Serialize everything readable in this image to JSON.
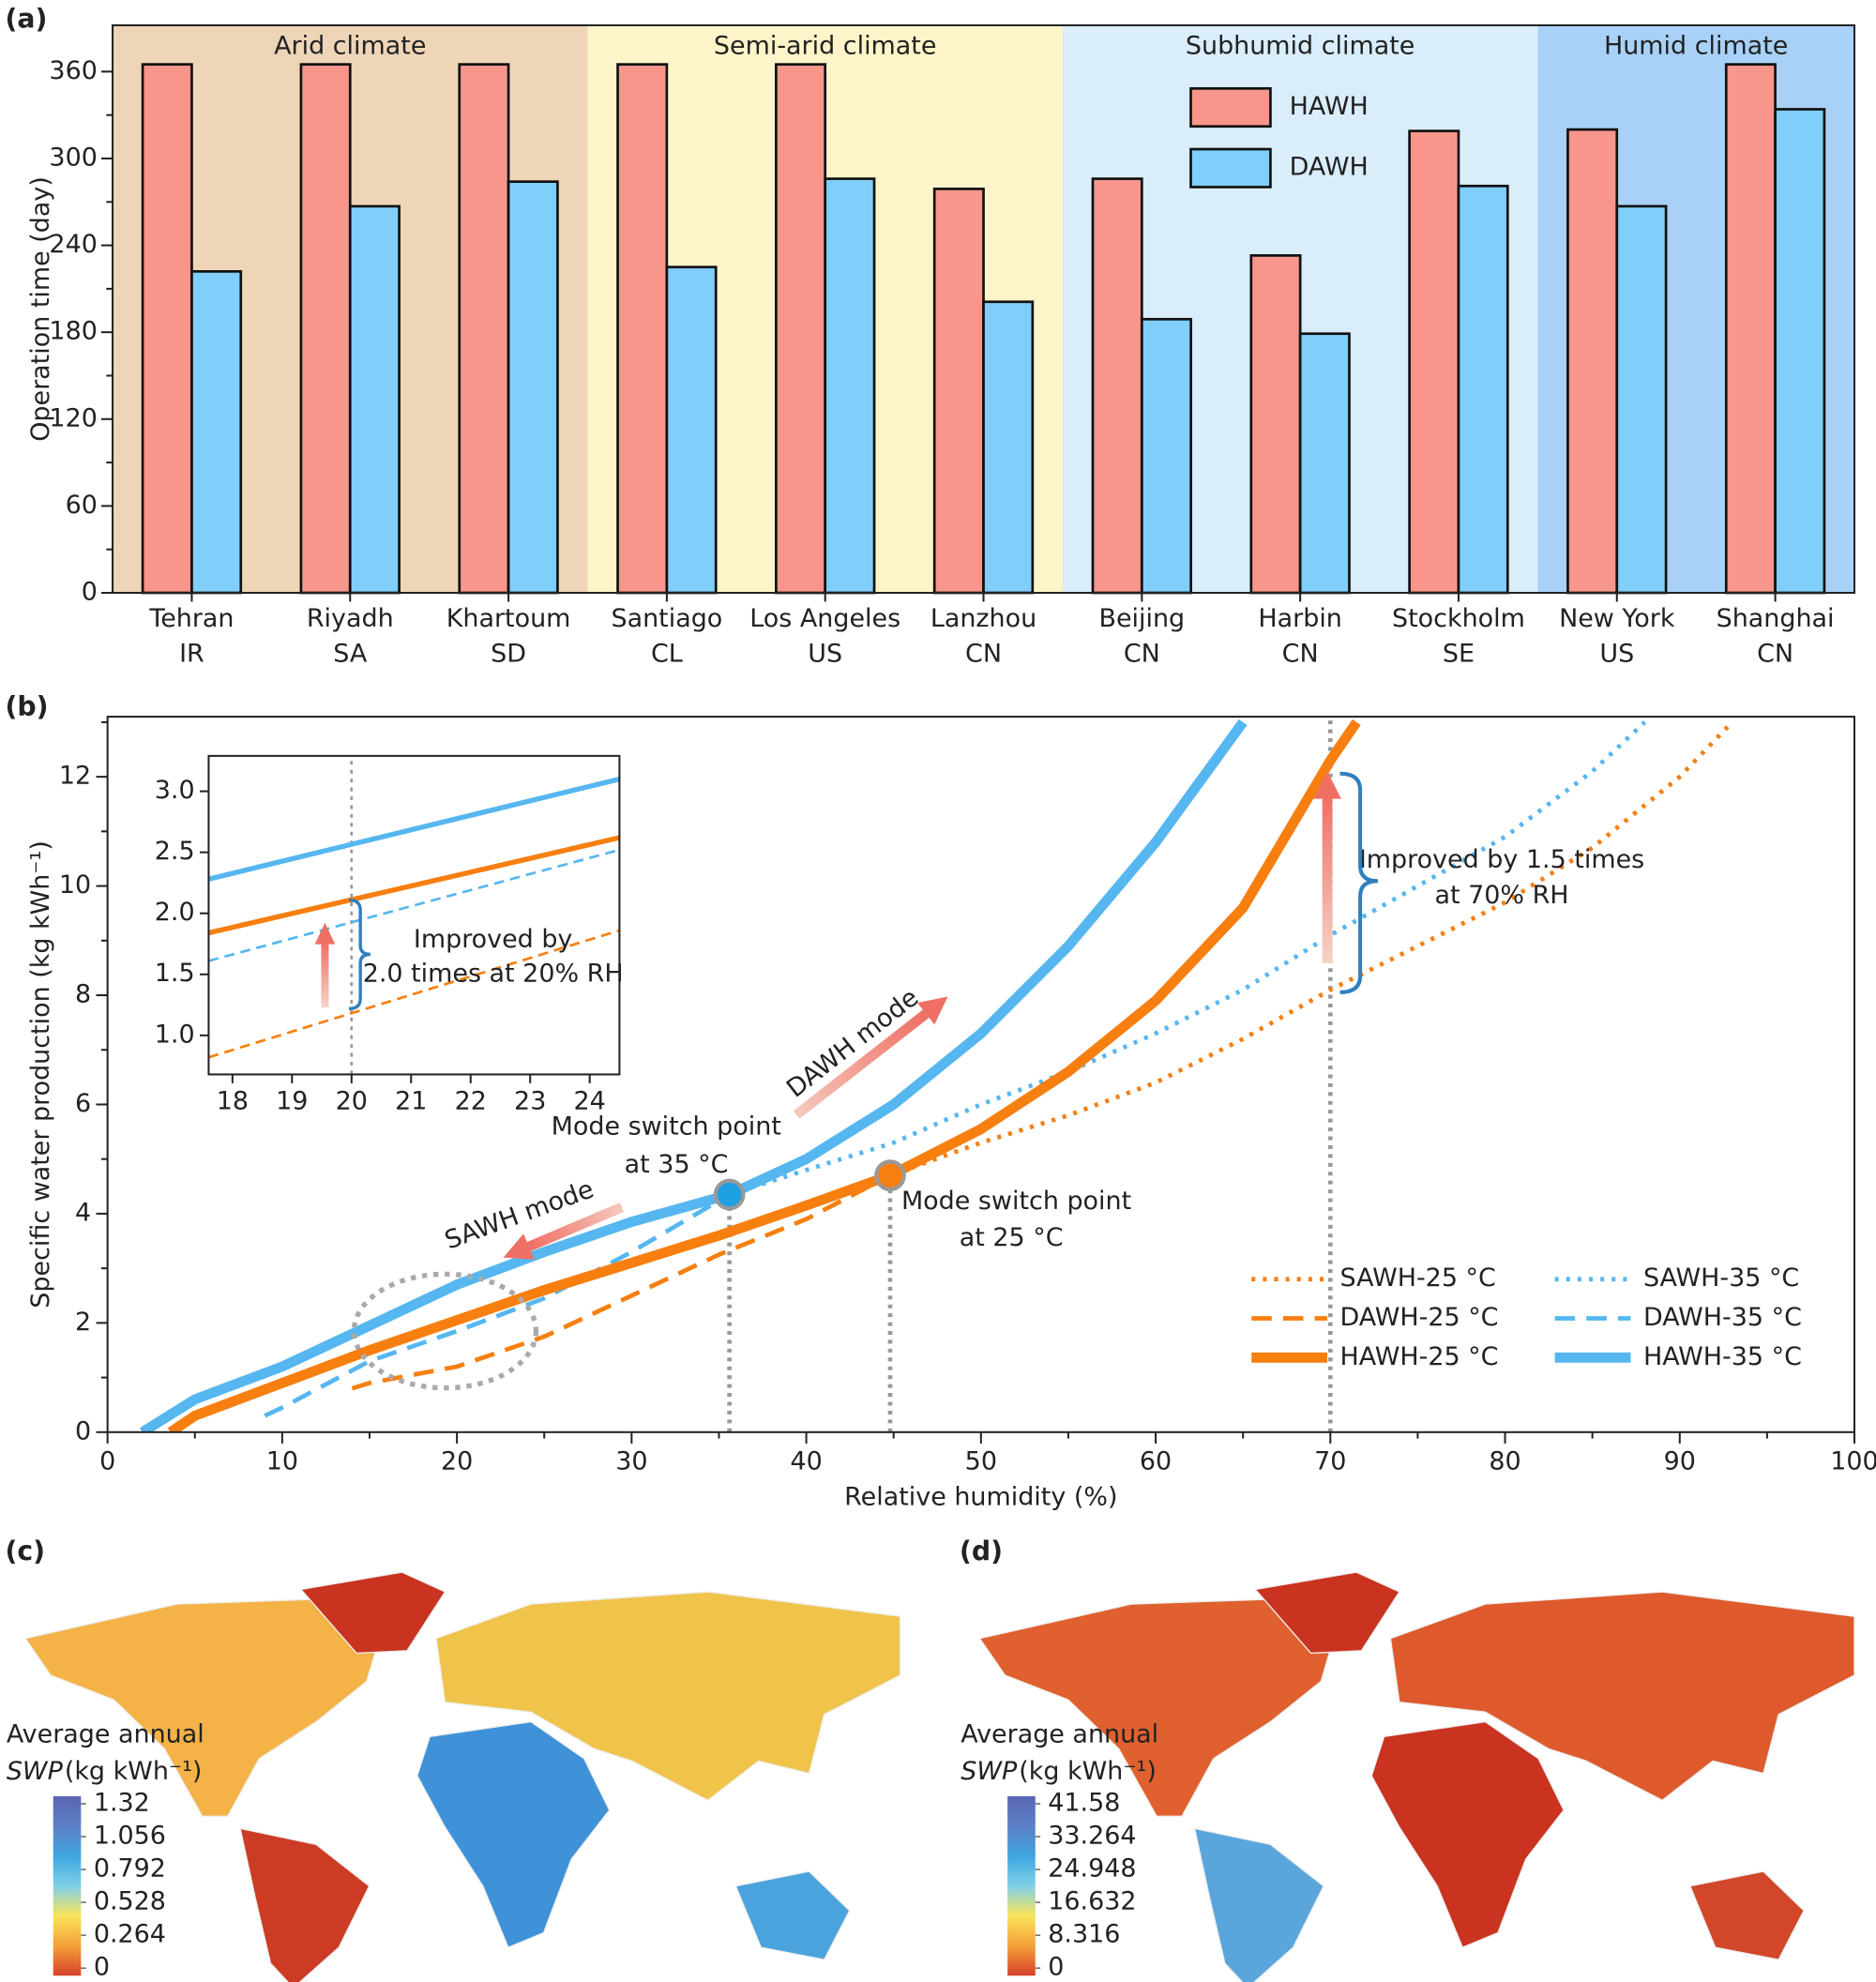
{
  "chart_data": [
    {
      "type": "bar",
      "panel": "(a)",
      "y_label": "Operation time (day)",
      "categories": [
        [
          "Tehran",
          "IR"
        ],
        [
          "Riyadh",
          "SA"
        ],
        [
          "Khartoum",
          "SD"
        ],
        [
          "Santiago",
          "CL"
        ],
        [
          "Los Angeles",
          "US"
        ],
        [
          "Lanzhou",
          "CN"
        ],
        [
          "Beijing",
          "CN"
        ],
        [
          "Harbin",
          "CN"
        ],
        [
          "Stockholm",
          "SE"
        ],
        [
          "New York",
          "US"
        ],
        [
          "Shanghai",
          "CN"
        ]
      ],
      "regions": [
        {
          "name": "Arid climate",
          "from": "Tehran",
          "to": "Khartoum",
          "color": "#efd5b8"
        },
        {
          "name": "Semi-arid climate",
          "from": "Santiago",
          "to": "Lanzhou",
          "color": "#fdf5c9"
        },
        {
          "name": "Subhumid climate",
          "from": "Beijing",
          "to": "Stockholm",
          "color": "#d9edfb"
        },
        {
          "name": "Humid climate",
          "from": "New York",
          "to": "Shanghai",
          "color": "#a9d1f8"
        }
      ],
      "series": [
        {
          "name": "HAWH",
          "color": "#f8968b",
          "values": [
            365,
            365,
            365,
            365,
            365,
            279,
            286,
            233,
            319,
            320,
            365
          ]
        },
        {
          "name": "DAWH",
          "color": "#80cefa",
          "values": [
            222,
            267,
            284,
            225,
            286,
            201,
            189,
            179,
            281,
            267,
            334
          ]
        }
      ],
      "ylim": [
        0,
        392
      ],
      "yticks": [
        0,
        60,
        120,
        180,
        240,
        300,
        360
      ],
      "minor_yticks": [
        30,
        90,
        150,
        210,
        270,
        330
      ]
    },
    {
      "type": "line",
      "panel": "(b)",
      "y_label": "Specific water production (kg kWh⁻¹)",
      "x_label": "Relative humidity (%)",
      "xlim": [
        0,
        100
      ],
      "xticks": [
        0,
        10,
        20,
        30,
        40,
        50,
        60,
        70,
        80,
        90,
        100
      ],
      "minor_xticks": [
        5,
        15,
        25,
        35,
        45,
        55,
        65,
        75,
        85,
        95
      ],
      "ylim": [
        0,
        13.1
      ],
      "yticks": [
        0,
        2,
        4,
        6,
        8,
        10,
        12
      ],
      "minor_yticks": [
        1,
        3,
        5,
        7,
        9,
        11,
        13
      ],
      "series": [
        {
          "name": "SAWH-25 °C",
          "color": "#f77f10",
          "style": "dotted",
          "x": [
            44.8,
            50,
            55,
            60,
            65,
            70,
            75,
            80,
            85,
            90,
            93
          ],
          "values": [
            4.7,
            5.3,
            5.8,
            6.4,
            7.2,
            8.1,
            8.9,
            9.7,
            10.7,
            12.0,
            13.0
          ]
        },
        {
          "name": "DAWH-25 °C",
          "color": "#f77f10",
          "style": "dashed",
          "x": [
            14,
            15,
            20,
            25,
            30,
            35,
            40,
            44.8
          ],
          "values": [
            0.8,
            0.9,
            1.2,
            1.75,
            2.5,
            3.25,
            3.9,
            4.7
          ]
        },
        {
          "name": "HAWH-25 °C",
          "color": "#f77f10",
          "style": "solid",
          "x": [
            3.6,
            5,
            10,
            15,
            20,
            25,
            30,
            35,
            40,
            44.8,
            50,
            55,
            60,
            65,
            70,
            71.5
          ],
          "values": [
            0,
            0.3,
            0.9,
            1.5,
            2.05,
            2.6,
            3.1,
            3.6,
            4.15,
            4.7,
            5.55,
            6.6,
            7.9,
            9.6,
            12.3,
            13.0
          ]
        },
        {
          "name": "SAWH-35 °C",
          "color": "#56b7f0",
          "style": "dotted",
          "x": [
            35.6,
            40,
            45,
            50,
            55,
            60,
            65,
            70,
            75,
            80,
            85,
            88
          ],
          "values": [
            4.35,
            4.8,
            5.3,
            6.0,
            6.6,
            7.3,
            8.1,
            9.1,
            10.0,
            10.9,
            12.1,
            13.0
          ]
        },
        {
          "name": "DAWH-35 °C",
          "color": "#56b7f0",
          "style": "dashed",
          "x": [
            9,
            10,
            15,
            20,
            25,
            30,
            35.6
          ],
          "values": [
            0.3,
            0.45,
            1.3,
            1.85,
            2.45,
            3.3,
            4.35
          ]
        },
        {
          "name": "HAWH-35 °C",
          "color": "#56b7f0",
          "style": "solid",
          "x": [
            2,
            5,
            10,
            15,
            20,
            25,
            30,
            35.6,
            40,
            45,
            50,
            55,
            60,
            65
          ],
          "values": [
            0,
            0.6,
            1.2,
            1.95,
            2.7,
            3.3,
            3.85,
            4.35,
            5.0,
            6.0,
            7.3,
            8.9,
            10.8,
            13.0
          ]
        }
      ],
      "markers": [
        {
          "x": 35.6,
          "y": 4.35,
          "color": "#1fa0e0"
        },
        {
          "x": 44.8,
          "y": 4.7,
          "color": "#f77f10"
        }
      ],
      "vlines": [
        35.6,
        44.8,
        70
      ],
      "annotations": [
        "DAWH mode",
        "SAWH mode",
        "Mode switch point",
        "at 35 °C",
        "Mode switch point",
        "at 25 °C",
        "Improved by 1.5 times",
        "at 70% RH"
      ]
    },
    {
      "type": "line",
      "xlim": [
        17.6,
        24.5
      ],
      "xticks": [
        18,
        19,
        20,
        21,
        22,
        23,
        24
      ],
      "ylim": [
        0.68,
        3.29
      ],
      "yticks": [
        {
          "value": 1.0,
          "label": "1.0"
        },
        1.5,
        {
          "value": 2.0,
          "label": "2.0"
        },
        2.5,
        {
          "value": 3.0,
          "label": "3.0"
        }
      ],
      "series": [
        {
          "color": "#56b7f0",
          "style": "solid",
          "x": [
            17.6,
            24.5
          ],
          "values": [
            2.28,
            3.1
          ]
        },
        {
          "color": "#f77f10",
          "style": "solid",
          "x": [
            17.6,
            24.5
          ],
          "values": [
            1.84,
            2.62
          ]
        },
        {
          "color": "#56b7f0",
          "style": "dashed",
          "x": [
            17.6,
            24.5
          ],
          "values": [
            1.61,
            2.52
          ]
        },
        {
          "color": "#f77f10",
          "style": "dashed",
          "x": [
            17.6,
            24.5
          ],
          "values": [
            0.82,
            1.86
          ]
        }
      ],
      "vlines": [
        20
      ],
      "annotations": [
        "Improved by",
        "2.0 times at 20% RH"
      ]
    },
    {
      "type": "map",
      "panel": "(c)",
      "colorbar_title": [
        "Average annual",
        "SWP",
        " (kg kWh⁻¹)"
      ],
      "colorbar_ticks": [
        0,
        0.264,
        0.528,
        0.792,
        1.056,
        1.32
      ],
      "colorbar_colors": [
        "#d7402a",
        "#f5a13a",
        "#f9e45a",
        "#7fd0e8",
        "#3ea6e0",
        "#5d7fc6",
        "#5a66b4"
      ]
    },
    {
      "type": "map",
      "panel": "(d)",
      "colorbar_title": [
        "Average annual",
        "SWP",
        " (kg kWh⁻¹)"
      ],
      "colorbar_ticks": [
        0,
        8.316,
        16.632,
        24.948,
        33.264,
        41.58
      ],
      "colorbar_colors": [
        "#d7402a",
        "#f5a13a",
        "#f9e45a",
        "#7fd0e8",
        "#3ea6e0",
        "#5d7fc6",
        "#5a66b4"
      ]
    }
  ]
}
